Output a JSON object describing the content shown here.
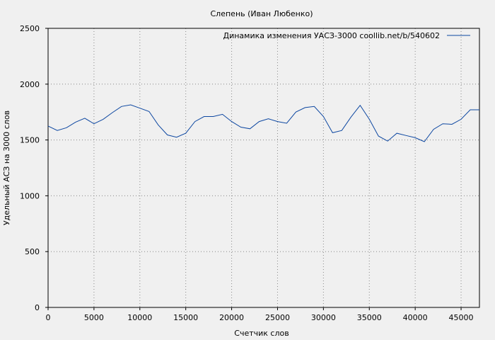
{
  "chart_data": {
    "type": "line",
    "title": "Слепень (Иван Любенко)",
    "xlabel": "Счетчик слов",
    "ylabel": "Удельный АСЗ на 3000 слов",
    "xlim": [
      0,
      47000
    ],
    "ylim": [
      0,
      2500
    ],
    "xticks": [
      0,
      5000,
      10000,
      15000,
      20000,
      25000,
      30000,
      35000,
      40000,
      45000
    ],
    "yticks": [
      0,
      500,
      1000,
      1500,
      2000,
      2500
    ],
    "grid": true,
    "legend_position": "top-right",
    "series": [
      {
        "name": "Динамика изменения УАСЗ-3000  coollib.net/b/540602",
        "color": "#0d47a1",
        "x": [
          0,
          1000,
          2000,
          3000,
          4000,
          5000,
          6000,
          7000,
          8000,
          9000,
          10000,
          11000,
          12000,
          13000,
          14000,
          15000,
          16000,
          17000,
          18000,
          19000,
          20000,
          21000,
          22000,
          23000,
          24000,
          25000,
          26000,
          27000,
          28000,
          29000,
          30000,
          31000,
          32000,
          33000,
          34000,
          35000,
          36000,
          37000,
          38000,
          39000,
          40000,
          41000,
          42000,
          43000,
          44000,
          45000,
          46000,
          47000
        ],
        "y": [
          1625,
          1585,
          1610,
          1660,
          1695,
          1645,
          1685,
          1745,
          1800,
          1815,
          1785,
          1755,
          1635,
          1545,
          1525,
          1560,
          1665,
          1710,
          1710,
          1730,
          1665,
          1615,
          1600,
          1665,
          1690,
          1665,
          1650,
          1750,
          1790,
          1800,
          1710,
          1565,
          1585,
          1705,
          1810,
          1685,
          1535,
          1490,
          1560,
          1540,
          1520,
          1485,
          1595,
          1645,
          1640,
          1685,
          1770,
          1770
        ]
      }
    ]
  }
}
